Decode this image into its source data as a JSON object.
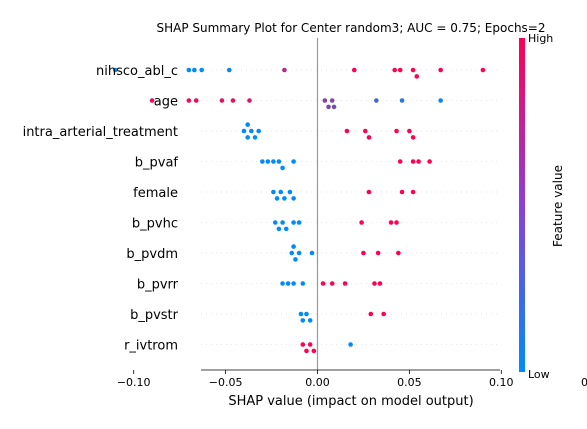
{
  "chart_data": {
    "type": "scatter",
    "title": "SHAP Summary Plot for Center random3; AUC = 0.75; Epochs=2",
    "xlabel": "SHAP value (impact on model output)",
    "xlim": [
      -0.125,
      0.19
    ],
    "xticks": [
      -0.1,
      -0.05,
      0.0,
      0.05,
      0.1,
      0.15
    ],
    "xtick_labels": [
      "−0.10",
      "−0.05",
      "0.00",
      "0.05",
      "0.10",
      "0.15"
    ],
    "grid": false,
    "colorbar": {
      "label": "Feature value",
      "high_label": "High",
      "low_label": "Low",
      "low_color": "#008bfb",
      "high_color": "#ff0052"
    },
    "features": [
      {
        "name": "nihsco_abl_c",
        "points": [
          {
            "x": -0.11,
            "v": 0.0
          },
          {
            "x": -0.07,
            "v": 0.0
          },
          {
            "x": -0.067,
            "v": 0.0
          },
          {
            "x": -0.063,
            "v": 0.0
          },
          {
            "x": -0.048,
            "v": 0.05
          },
          {
            "x": -0.018,
            "v": 0.7
          },
          {
            "x": 0.02,
            "v": 1.0
          },
          {
            "x": 0.042,
            "v": 1.0
          },
          {
            "x": 0.045,
            "v": 1.0
          },
          {
            "x": 0.052,
            "v": 1.0
          },
          {
            "x": 0.054,
            "v": 1.0
          },
          {
            "x": 0.067,
            "v": 1.0
          },
          {
            "x": 0.09,
            "v": 1.0
          }
        ]
      },
      {
        "name": "age",
        "points": [
          {
            "x": -0.09,
            "v": 1.0
          },
          {
            "x": -0.07,
            "v": 0.95
          },
          {
            "x": -0.066,
            "v": 0.95
          },
          {
            "x": -0.052,
            "v": 0.9
          },
          {
            "x": -0.046,
            "v": 0.9
          },
          {
            "x": -0.037,
            "v": 0.85
          },
          {
            "x": 0.004,
            "v": 0.55
          },
          {
            "x": 0.006,
            "v": 0.5
          },
          {
            "x": 0.008,
            "v": 0.5
          },
          {
            "x": 0.009,
            "v": 0.45
          },
          {
            "x": 0.032,
            "v": 0.25
          },
          {
            "x": 0.046,
            "v": 0.15
          },
          {
            "x": 0.067,
            "v": 0.05
          },
          {
            "x": 0.185,
            "v": 0.0
          }
        ]
      },
      {
        "name": "intra_arterial_treatment",
        "points": [
          {
            "x": -0.04,
            "v": 0.0
          },
          {
            "x": -0.038,
            "v": 0.0
          },
          {
            "x": -0.036,
            "v": 0.0
          },
          {
            "x": -0.034,
            "v": 0.0
          },
          {
            "x": -0.032,
            "v": 0.0
          },
          {
            "x": -0.038,
            "v": 0.0
          },
          {
            "x": 0.016,
            "v": 1.0
          },
          {
            "x": 0.026,
            "v": 1.0
          },
          {
            "x": 0.028,
            "v": 1.0
          },
          {
            "x": 0.043,
            "v": 1.0
          },
          {
            "x": 0.05,
            "v": 1.0
          },
          {
            "x": 0.052,
            "v": 1.0
          }
        ]
      },
      {
        "name": "b_pvaf",
        "points": [
          {
            "x": -0.03,
            "v": 0.0
          },
          {
            "x": -0.027,
            "v": 0.0
          },
          {
            "x": -0.024,
            "v": 0.0
          },
          {
            "x": -0.021,
            "v": 0.0
          },
          {
            "x": -0.019,
            "v": 0.0
          },
          {
            "x": -0.013,
            "v": 0.0
          },
          {
            "x": 0.045,
            "v": 1.0
          },
          {
            "x": 0.052,
            "v": 1.0
          },
          {
            "x": 0.055,
            "v": 1.0
          },
          {
            "x": 0.061,
            "v": 1.0
          }
        ]
      },
      {
        "name": "female",
        "points": [
          {
            "x": -0.024,
            "v": 0.0
          },
          {
            "x": -0.022,
            "v": 0.0
          },
          {
            "x": -0.02,
            "v": 0.0
          },
          {
            "x": -0.018,
            "v": 0.0
          },
          {
            "x": -0.015,
            "v": 0.0
          },
          {
            "x": -0.013,
            "v": 0.0
          },
          {
            "x": 0.028,
            "v": 1.0
          },
          {
            "x": 0.046,
            "v": 1.0
          },
          {
            "x": 0.052,
            "v": 1.0
          }
        ]
      },
      {
        "name": "b_pvhc",
        "points": [
          {
            "x": -0.023,
            "v": 0.0
          },
          {
            "x": -0.021,
            "v": 0.0
          },
          {
            "x": -0.019,
            "v": 0.0
          },
          {
            "x": -0.017,
            "v": 0.0
          },
          {
            "x": -0.013,
            "v": 0.0
          },
          {
            "x": -0.01,
            "v": 0.0
          },
          {
            "x": 0.024,
            "v": 1.0
          },
          {
            "x": 0.04,
            "v": 1.0
          },
          {
            "x": 0.043,
            "v": 1.0
          }
        ]
      },
      {
        "name": "b_pvdm",
        "points": [
          {
            "x": -0.014,
            "v": 0.0
          },
          {
            "x": -0.012,
            "v": 0.0
          },
          {
            "x": -0.01,
            "v": 0.0
          },
          {
            "x": -0.013,
            "v": 0.0
          },
          {
            "x": -0.003,
            "v": 0.0
          },
          {
            "x": 0.025,
            "v": 1.0
          },
          {
            "x": 0.033,
            "v": 1.0
          },
          {
            "x": 0.044,
            "v": 1.0
          }
        ]
      },
      {
        "name": "b_pvrr",
        "points": [
          {
            "x": -0.019,
            "v": 0.0
          },
          {
            "x": -0.016,
            "v": 0.0
          },
          {
            "x": -0.013,
            "v": 0.0
          },
          {
            "x": -0.008,
            "v": 0.0
          },
          {
            "x": 0.003,
            "v": 1.0
          },
          {
            "x": 0.008,
            "v": 1.0
          },
          {
            "x": 0.015,
            "v": 1.0
          },
          {
            "x": 0.031,
            "v": 1.0
          },
          {
            "x": 0.034,
            "v": 1.0
          }
        ]
      },
      {
        "name": "b_pvstr",
        "points": [
          {
            "x": -0.009,
            "v": 0.0
          },
          {
            "x": -0.008,
            "v": 0.0
          },
          {
            "x": -0.006,
            "v": 0.0
          },
          {
            "x": -0.004,
            "v": 0.0
          },
          {
            "x": 0.029,
            "v": 1.0
          },
          {
            "x": 0.036,
            "v": 1.0
          }
        ]
      },
      {
        "name": "r_ivtrom",
        "points": [
          {
            "x": -0.008,
            "v": 1.0
          },
          {
            "x": -0.006,
            "v": 1.0
          },
          {
            "x": -0.004,
            "v": 1.0
          },
          {
            "x": -0.002,
            "v": 1.0
          },
          {
            "x": 0.018,
            "v": 0.0
          }
        ]
      }
    ]
  }
}
